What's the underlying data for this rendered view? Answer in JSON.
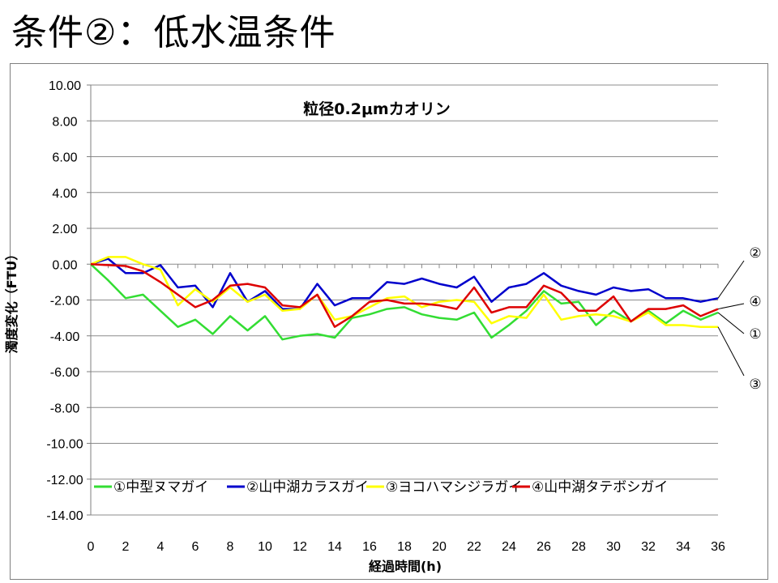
{
  "slide": {
    "title": "条件②：低水温条件"
  },
  "chart_data": {
    "type": "line",
    "title": "粒径0.2μmカオリン",
    "xlabel": "経過時間(h)",
    "ylabel": "濁度変化（FTU）",
    "xlim": [
      0,
      36
    ],
    "ylim": [
      -14,
      10
    ],
    "x_ticks": [
      0,
      2,
      4,
      6,
      8,
      10,
      12,
      14,
      16,
      18,
      20,
      22,
      24,
      26,
      28,
      30,
      32,
      34,
      36
    ],
    "y_ticks": [
      10,
      8,
      6,
      4,
      2,
      0,
      -2,
      -4,
      -6,
      -8,
      -10,
      -12,
      -14
    ],
    "grid": "horizontal",
    "legend_position": "bottom",
    "x": [
      0,
      1,
      2,
      3,
      4,
      5,
      6,
      7,
      8,
      9,
      10,
      11,
      12,
      13,
      14,
      15,
      16,
      17,
      18,
      19,
      20,
      21,
      22,
      23,
      24,
      25,
      26,
      27,
      28,
      29,
      30,
      31,
      32,
      33,
      34,
      35,
      36
    ],
    "series": [
      {
        "name": "①中型ヌマガイ",
        "color": "#33dd33",
        "callout": "①",
        "values": [
          0,
          -0.9,
          -1.9,
          -1.7,
          -2.6,
          -3.5,
          -3.1,
          -3.9,
          -2.9,
          -3.7,
          -2.9,
          -4.2,
          -4.0,
          -3.9,
          -4.1,
          -3.0,
          -2.8,
          -2.5,
          -2.4,
          -2.8,
          -3.0,
          -3.1,
          -2.7,
          -4.1,
          -3.4,
          -2.6,
          -1.5,
          -2.2,
          -2.1,
          -3.4,
          -2.6,
          -3.2,
          -2.6,
          -3.3,
          -2.6,
          -3.1,
          -2.7
        ]
      },
      {
        "name": "②山中湖カラスガイ",
        "color": "#0000cc",
        "callout": "②",
        "values": [
          0,
          0.3,
          -0.5,
          -0.5,
          -0.05,
          -1.3,
          -1.2,
          -2.4,
          -0.5,
          -2.1,
          -1.5,
          -2.5,
          -2.5,
          -1.1,
          -2.3,
          -1.9,
          -1.9,
          -1.0,
          -1.1,
          -0.8,
          -1.1,
          -1.3,
          -0.7,
          -2.1,
          -1.3,
          -1.1,
          -0.5,
          -1.2,
          -1.5,
          -1.7,
          -1.3,
          -1.5,
          -1.4,
          -1.9,
          -1.9,
          -2.1,
          -1.9
        ]
      },
      {
        "name": "③ヨコハマシジラガイ",
        "color": "#ffff00",
        "callout": "③",
        "values": [
          0,
          0.4,
          0.4,
          0.0,
          -0.3,
          -2.3,
          -1.4,
          -2.1,
          -1.3,
          -2.1,
          -1.7,
          -2.6,
          -2.5,
          -1.7,
          -3.1,
          -2.9,
          -2.4,
          -1.9,
          -1.8,
          -2.4,
          -2.1,
          -2.0,
          -2.1,
          -3.3,
          -2.9,
          -3.0,
          -1.7,
          -3.1,
          -2.9,
          -2.8,
          -2.9,
          -3.2,
          -2.7,
          -3.4,
          -3.4,
          -3.5,
          -3.5
        ]
      },
      {
        "name": "④山中湖タテボシガイ",
        "color": "#dd0000",
        "callout": "④",
        "values": [
          0,
          -0.05,
          -0.1,
          -0.4,
          -1.0,
          -1.7,
          -2.4,
          -2.0,
          -1.2,
          -1.1,
          -1.3,
          -2.3,
          -2.4,
          -1.7,
          -3.5,
          -2.9,
          -2.1,
          -2.0,
          -2.2,
          -2.2,
          -2.3,
          -2.5,
          -1.3,
          -2.7,
          -2.4,
          -2.4,
          -1.2,
          -1.6,
          -2.6,
          -2.6,
          -1.8,
          -3.2,
          -2.5,
          -2.5,
          -2.3,
          -2.9,
          -2.5
        ]
      }
    ]
  }
}
